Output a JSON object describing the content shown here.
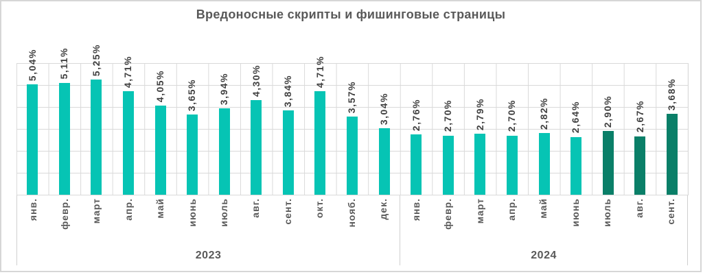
{
  "chart_data": {
    "type": "bar",
    "title": "Вредоносные скрипты и фишинговые страницы",
    "xlabel": "",
    "ylabel": "",
    "ylim": [
      0,
      6
    ],
    "gridline_step": 1,
    "grid": "on",
    "legend_position": "none",
    "y_axis_tick_labels_visible": false,
    "value_format": "percent_comma_2dp",
    "grid_color": "#D9D9D9",
    "series_colors": {
      "teal": "#06C4B4",
      "dark_green": "#0A7F68"
    },
    "text_colors": {
      "title": "#595959",
      "data_label": "#404040",
      "axis_label": "#595959"
    },
    "groups": [
      {
        "year": "2023",
        "bars": [
          {
            "month": "янв.",
            "value": 5.04,
            "label": "5,04%",
            "color": "teal"
          },
          {
            "month": "февр.",
            "value": 5.11,
            "label": "5,11%",
            "color": "teal"
          },
          {
            "month": "март",
            "value": 5.25,
            "label": "5,25%",
            "color": "teal"
          },
          {
            "month": "апр.",
            "value": 4.71,
            "label": "4,71%",
            "color": "teal"
          },
          {
            "month": "май",
            "value": 4.05,
            "label": "4,05%",
            "color": "teal"
          },
          {
            "month": "июнь",
            "value": 3.65,
            "label": "3,65%",
            "color": "teal"
          },
          {
            "month": "июль",
            "value": 3.94,
            "label": "3,94%",
            "color": "teal"
          },
          {
            "month": "авг.",
            "value": 4.3,
            "label": "4,30%",
            "color": "teal"
          },
          {
            "month": "сент.",
            "value": 3.84,
            "label": "3,84%",
            "color": "teal"
          },
          {
            "month": "окт.",
            "value": 4.71,
            "label": "4,71%",
            "color": "teal"
          },
          {
            "month": "нояб.",
            "value": 3.57,
            "label": "3,57%",
            "color": "teal"
          },
          {
            "month": "дек.",
            "value": 3.04,
            "label": "3,04%",
            "color": "teal"
          }
        ]
      },
      {
        "year": "2024",
        "bars": [
          {
            "month": "янв.",
            "value": 2.76,
            "label": "2,76%",
            "color": "teal"
          },
          {
            "month": "февр.",
            "value": 2.7,
            "label": "2,70%",
            "color": "teal"
          },
          {
            "month": "март",
            "value": 2.79,
            "label": "2,79%",
            "color": "teal"
          },
          {
            "month": "апр.",
            "value": 2.7,
            "label": "2,70%",
            "color": "teal"
          },
          {
            "month": "май",
            "value": 2.82,
            "label": "2,82%",
            "color": "teal"
          },
          {
            "month": "июнь",
            "value": 2.64,
            "label": "2,64%",
            "color": "teal"
          },
          {
            "month": "июль",
            "value": 2.9,
            "label": "2,90%",
            "color": "dark_green"
          },
          {
            "month": "авг.",
            "value": 2.67,
            "label": "2,67%",
            "color": "dark_green"
          },
          {
            "month": "сент.",
            "value": 3.68,
            "label": "3,68%",
            "color": "dark_green"
          }
        ]
      }
    ]
  }
}
